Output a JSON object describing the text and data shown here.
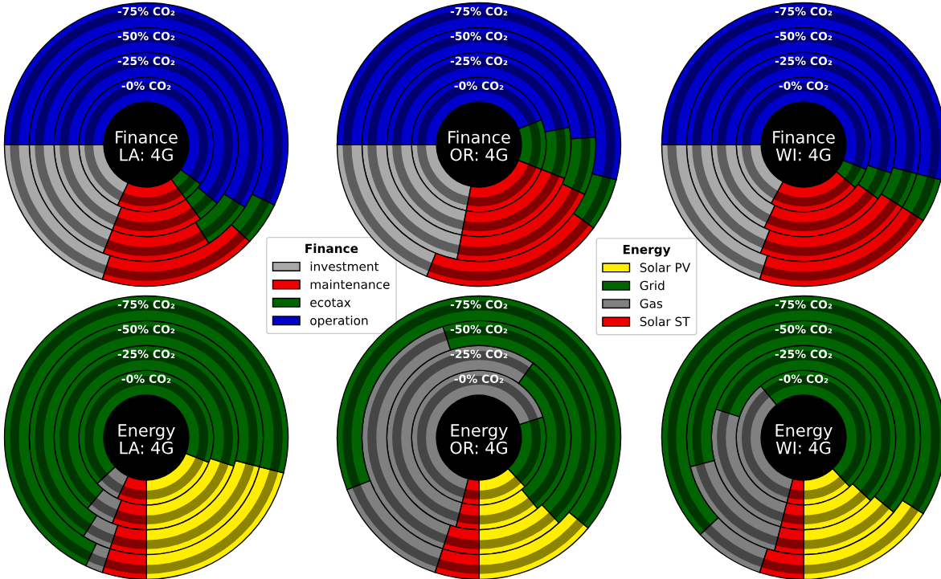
{
  "chart_data": [
    {
      "type": "donut",
      "title": "Finance\nLA: 4G",
      "categories": [
        "investment",
        "maintenance",
        "ecotax",
        "operation"
      ],
      "colors": [
        "#a9a9a9",
        "#ee0000",
        "#006400",
        "#0000cd"
      ],
      "legend": "bottom right",
      "legend_title": "Finance",
      "series": [
        {
          "name": "-0% CO₂",
          "values": [
            18,
            17,
            5,
            60
          ]
        },
        {
          "name": "-25% CO₂",
          "values": [
            19,
            16,
            4,
            61
          ]
        },
        {
          "name": "-50% CO₂",
          "values": [
            19,
            15,
            7,
            59
          ]
        },
        {
          "name": "-75% CO₂",
          "values": [
            20,
            18,
            5,
            57
          ]
        }
      ]
    },
    {
      "type": "donut",
      "title": "Finance\nOR: 4G",
      "categories": [
        null,
        null,
        null,
        null
      ],
      "colors": [
        "#a9a9a9",
        "#ee0000",
        "#006400",
        "#0000cd"
      ],
      "series": [
        {
          "name": "-0% CO₂",
          "values": [
            22,
            22,
            12,
            44
          ]
        },
        {
          "name": "-25% CO₂",
          "values": [
            22,
            22,
            9,
            47
          ]
        },
        {
          "name": "-50% CO₂",
          "values": [
            22,
            21,
            8,
            49
          ]
        },
        {
          "name": "-75% CO₂",
          "values": [
            19,
            21,
            6,
            54
          ]
        }
      ]
    },
    {
      "type": "donut",
      "title": "Finance\nWI: 4G",
      "categories": [
        null,
        null,
        null,
        null
      ],
      "colors": [
        "#a9a9a9",
        "#ee0000",
        "#006400",
        "#0000cd"
      ],
      "series": [
        {
          "name": "-0% CO₂",
          "values": [
            17,
            22,
            5,
            56
          ]
        },
        {
          "name": "-25% CO₂",
          "values": [
            18,
            22,
            5,
            55
          ]
        },
        {
          "name": "-50% CO₂",
          "values": [
            19,
            22,
            5,
            54
          ]
        },
        {
          "name": "-75% CO₂",
          "values": [
            20,
            21,
            5,
            54
          ]
        }
      ]
    },
    {
      "type": "donut",
      "title": "Energy\nLA: 4G",
      "categories": [
        null,
        null,
        null,
        null
      ],
      "colors": [
        "#ffee00",
        "#006400",
        "#808080",
        "#ee0000"
      ],
      "series": [
        {
          "name": "-0% CO₂",
          "values": [
            19,
            68,
            6,
            7
          ]
        },
        {
          "name": "-25% CO₂",
          "values": [
            20,
            69,
            5,
            6
          ]
        },
        {
          "name": "-50% CO₂",
          "values": [
            21,
            70,
            4,
            5
          ]
        },
        {
          "name": "-75% CO₂",
          "values": [
            21,
            72,
            2,
            5
          ]
        }
      ]
    },
    {
      "type": "donut",
      "title": "Energy\nOR: 4G",
      "categories": [
        "Solar PV",
        "Grid",
        "Gas",
        "Solar ST"
      ],
      "colors": [
        "#ffee00",
        "#006400",
        "#808080",
        "#ee0000"
      ],
      "legend": "top right",
      "legend_title": "Energy",
      "series": [
        {
          "name": "-0% CO₂",
          "values": [
            12,
            18,
            66,
            4
          ]
        },
        {
          "name": "-25% CO₂",
          "values": [
            11,
            29,
            56,
            4
          ]
        },
        {
          "name": "-50% CO₂",
          "values": [
            12,
            43,
            40,
            5
          ]
        },
        {
          "name": "-75% CO₂",
          "values": [
            14,
            67,
            14,
            5
          ]
        }
      ]
    },
    {
      "type": "donut",
      "title": "Energy\nWI: 4G",
      "categories": [
        null,
        null,
        null,
        null
      ],
      "colors": [
        "#ffee00",
        "#006400",
        "#808080",
        "#ee0000"
      ],
      "series": [
        {
          "name": "-0% CO₂",
          "values": [
            12,
            49,
            35,
            4
          ]
        },
        {
          "name": "-25% CO₂",
          "values": [
            13,
            57,
            26,
            4
          ]
        },
        {
          "name": "-50% CO₂",
          "values": [
            14,
            65,
            17,
            4
          ]
        },
        {
          "name": "-75% CO₂",
          "values": [
            16,
            71,
            8,
            5
          ]
        }
      ]
    }
  ]
}
